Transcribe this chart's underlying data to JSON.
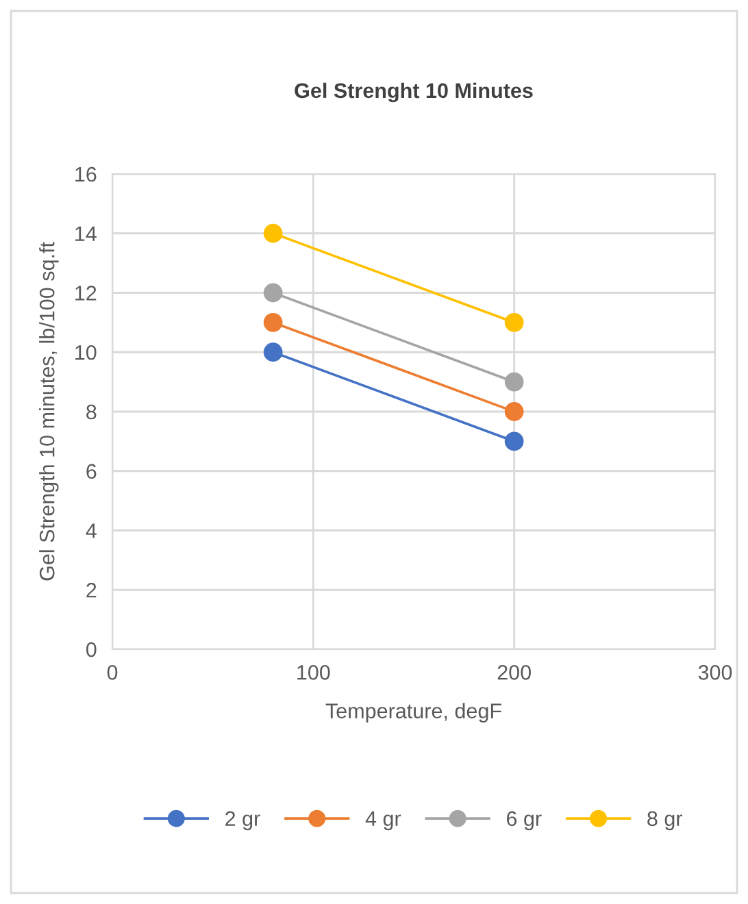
{
  "chart_data": {
    "type": "line",
    "title": "Gel Strenght 10 Minutes",
    "xlabel": "Temperature, degF",
    "ylabel": "Gel Strength 10 minutes, lb/100 sq.ft",
    "x": [
      80,
      200
    ],
    "series": [
      {
        "name": "2 gr",
        "color": "#4472c4",
        "values": [
          10,
          7
        ]
      },
      {
        "name": "4 gr",
        "color": "#ed7d31",
        "values": [
          11,
          8
        ]
      },
      {
        "name": "6 gr",
        "color": "#a5a5a5",
        "values": [
          12,
          9
        ]
      },
      {
        "name": "8 gr",
        "color": "#ffc000",
        "values": [
          14,
          11
        ]
      }
    ],
    "xlim": [
      0,
      300
    ],
    "xticks": [
      0,
      100,
      200,
      300
    ],
    "ylim": [
      0,
      16
    ],
    "yticks": [
      0,
      2,
      4,
      6,
      8,
      10,
      12,
      14,
      16
    ],
    "grid": true,
    "legend": "bottom",
    "marker": "circle",
    "line_style": "solid"
  }
}
